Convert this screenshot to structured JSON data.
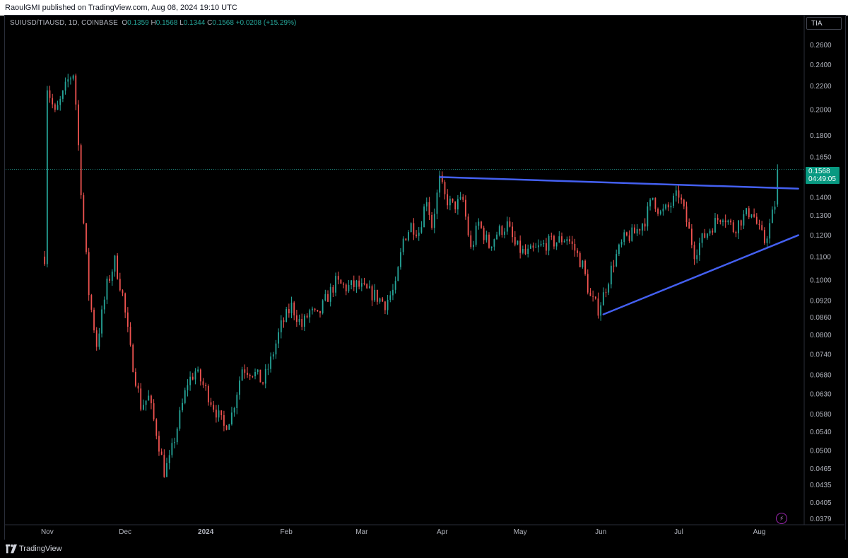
{
  "header": {
    "published_text": "RaoulGMI published on TradingView.com, Aug 08, 2024 19:10 UTC"
  },
  "legend": {
    "symbol": "SUIUSD/TIAUSD, 1D, COINBASE",
    "open_label": "O",
    "open": "0.1359",
    "high_label": "H",
    "high": "0.1568",
    "low_label": "L",
    "low": "0.1344",
    "close_label": "C",
    "close": "0.1568",
    "change": "+0.0208 (+15.29%)"
  },
  "symbol_box": "TIA",
  "last_price": {
    "price": "0.1568",
    "countdown": "04:49:05"
  },
  "footer": {
    "brand": "TradingView"
  },
  "colors": {
    "up": "#26a69a",
    "down": "#ef5350",
    "trendline": "#4460f1",
    "price_tag": "#089981"
  },
  "chart_data": {
    "type": "candlestick",
    "title": "SUIUSD/TIAUSD, 1D, COINBASE",
    "scale": "log",
    "ylim": [
      0.037,
      0.275
    ],
    "y_ticks": [
      "0.2600",
      "0.2400",
      "0.2200",
      "0.2000",
      "0.1800",
      "0.1650",
      "0.1400",
      "0.1300",
      "0.1200",
      "0.1100",
      "0.1000",
      "0.0920",
      "0.0860",
      "0.0800",
      "0.0740",
      "0.0680",
      "0.0630",
      "0.0580",
      "0.0540",
      "0.0500",
      "0.0465",
      "0.0435",
      "0.0405",
      "0.0379"
    ],
    "x_range": [
      "2023-10-16",
      "2024-08-18"
    ],
    "x_ticks": [
      {
        "date": "2023-11-01",
        "label": "Nov"
      },
      {
        "date": "2023-12-01",
        "label": "Dec"
      },
      {
        "date": "2024-01-01",
        "label": "2024"
      },
      {
        "date": "2024-02-01",
        "label": "Feb"
      },
      {
        "date": "2024-03-01",
        "label": "Mar"
      },
      {
        "date": "2024-04-01",
        "label": "Apr"
      },
      {
        "date": "2024-05-01",
        "label": "May"
      },
      {
        "date": "2024-06-01",
        "label": "Jun"
      },
      {
        "date": "2024-07-01",
        "label": "Jul"
      },
      {
        "date": "2024-08-01",
        "label": "Aug"
      }
    ],
    "close_path": [
      [
        "2023-10-31",
        0.11
      ],
      [
        "2023-11-01",
        0.22
      ],
      [
        "2023-11-04",
        0.196
      ],
      [
        "2023-11-07",
        0.212
      ],
      [
        "2023-11-09",
        0.225
      ],
      [
        "2023-11-11",
        0.232
      ],
      [
        "2023-11-12",
        0.205
      ],
      [
        "2023-11-14",
        0.145
      ],
      [
        "2023-11-17",
        0.095
      ],
      [
        "2023-11-20",
        0.077
      ],
      [
        "2023-11-24",
        0.098
      ],
      [
        "2023-11-27",
        0.108
      ],
      [
        "2023-11-30",
        0.094
      ],
      [
        "2023-12-03",
        0.075
      ],
      [
        "2023-12-07",
        0.06
      ],
      [
        "2023-12-10",
        0.062
      ],
      [
        "2023-12-13",
        0.054
      ],
      [
        "2023-12-16",
        0.046
      ],
      [
        "2023-12-18",
        0.048
      ],
      [
        "2023-12-21",
        0.055
      ],
      [
        "2023-12-25",
        0.066
      ],
      [
        "2023-12-28",
        0.069
      ],
      [
        "2024-01-01",
        0.064
      ],
      [
        "2024-01-04",
        0.06
      ],
      [
        "2024-01-08",
        0.055
      ],
      [
        "2024-01-11",
        0.058
      ],
      [
        "2024-01-15",
        0.07
      ],
      [
        "2024-01-19",
        0.069
      ],
      [
        "2024-01-23",
        0.066
      ],
      [
        "2024-01-26",
        0.072
      ],
      [
        "2024-01-30",
        0.083
      ],
      [
        "2024-02-03",
        0.09
      ],
      [
        "2024-02-07",
        0.083
      ],
      [
        "2024-02-10",
        0.088
      ],
      [
        "2024-02-13",
        0.086
      ],
      [
        "2024-02-16",
        0.092
      ],
      [
        "2024-02-20",
        0.099
      ],
      [
        "2024-02-24",
        0.097
      ],
      [
        "2024-02-28",
        0.098
      ],
      [
        "2024-03-02",
        0.096
      ],
      [
        "2024-03-06",
        0.094
      ],
      [
        "2024-03-10",
        0.091
      ],
      [
        "2024-03-14",
        0.097
      ],
      [
        "2024-03-17",
        0.118
      ],
      [
        "2024-03-20",
        0.125
      ],
      [
        "2024-03-23",
        0.122
      ],
      [
        "2024-03-26",
        0.14
      ],
      [
        "2024-03-28",
        0.125
      ],
      [
        "2024-03-31",
        0.15
      ],
      [
        "2024-04-02",
        0.14
      ],
      [
        "2024-04-05",
        0.135
      ],
      [
        "2024-04-09",
        0.138
      ],
      [
        "2024-04-12",
        0.113
      ],
      [
        "2024-04-15",
        0.126
      ],
      [
        "2024-04-19",
        0.115
      ],
      [
        "2024-04-22",
        0.121
      ],
      [
        "2024-04-26",
        0.125
      ],
      [
        "2024-04-29",
        0.115
      ],
      [
        "2024-05-03",
        0.111
      ],
      [
        "2024-05-07",
        0.113
      ],
      [
        "2024-05-11",
        0.116
      ],
      [
        "2024-05-15",
        0.117
      ],
      [
        "2024-05-19",
        0.119
      ],
      [
        "2024-05-22",
        0.113
      ],
      [
        "2024-05-25",
        0.106
      ],
      [
        "2024-05-28",
        0.093
      ],
      [
        "2024-05-31",
        0.089
      ],
      [
        "2024-06-02",
        0.094
      ],
      [
        "2024-06-06",
        0.108
      ],
      [
        "2024-06-10",
        0.118
      ],
      [
        "2024-06-14",
        0.121
      ],
      [
        "2024-06-18",
        0.128
      ],
      [
        "2024-06-21",
        0.14
      ],
      [
        "2024-06-24",
        0.131
      ],
      [
        "2024-06-27",
        0.134
      ],
      [
        "2024-07-01",
        0.142
      ],
      [
        "2024-07-04",
        0.127
      ],
      [
        "2024-07-07",
        0.112
      ],
      [
        "2024-07-10",
        0.118
      ],
      [
        "2024-07-14",
        0.125
      ],
      [
        "2024-07-18",
        0.131
      ],
      [
        "2024-07-22",
        0.123
      ],
      [
        "2024-07-25",
        0.128
      ],
      [
        "2024-07-29",
        0.133
      ],
      [
        "2024-08-01",
        0.122
      ],
      [
        "2024-08-03",
        0.117
      ],
      [
        "2024-08-05",
        0.125
      ],
      [
        "2024-08-07",
        0.136
      ],
      [
        "2024-08-08",
        0.1568
      ]
    ],
    "trendlines": [
      {
        "name": "resistance",
        "from": [
          "2024-03-31",
          0.152
        ],
        "to": [
          "2024-08-16",
          0.145
        ]
      },
      {
        "name": "support",
        "from": [
          "2024-06-02",
          0.087
        ],
        "to": [
          "2024-08-16",
          0.12
        ]
      }
    ],
    "last_price_line": 0.1568
  }
}
